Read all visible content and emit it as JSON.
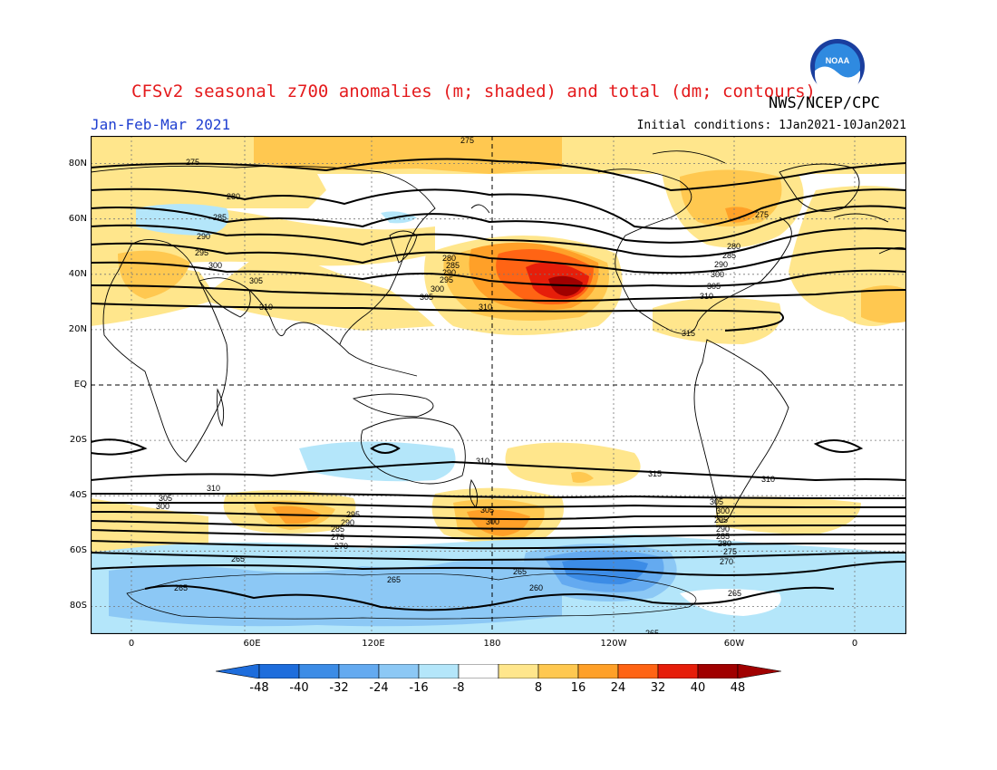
{
  "title": "CFSv2 seasonal z700 anomalies (m; shaded) and total (dm; contours)",
  "organization": "NWS/NCEP/CPC",
  "logo_text": "NOAA",
  "period": "Jan-Feb-Mar 2021",
  "initial_conditions": "Initial conditions: 1Jan2021-10Jan2021",
  "lat_labels": [
    "80N",
    "60N",
    "40N",
    "20N",
    "EQ",
    "20S",
    "40S",
    "60S",
    "80S"
  ],
  "lon_labels": [
    "0",
    "60E",
    "120E",
    "180",
    "120W",
    "60W",
    "0"
  ],
  "colorbar": {
    "ticks": [
      "-48",
      "-40",
      "-32",
      "-24",
      "-16",
      "-8",
      "8",
      "16",
      "24",
      "32",
      "40",
      "48"
    ],
    "colors": [
      "#1e6ddc",
      "#3c8ce6",
      "#64aaf0",
      "#8cc8f5",
      "#b4e6fa",
      "#ffffff",
      "#ffe68c",
      "#ffc850",
      "#ffa028",
      "#ff6414",
      "#e61e0a",
      "#a00000"
    ]
  },
  "contour_labels": {
    "nh": [
      "275",
      "280",
      "285",
      "290",
      "295",
      "300",
      "305",
      "310",
      "315"
    ],
    "sh": [
      "310",
      "305",
      "300",
      "295",
      "290",
      "285",
      "280",
      "275",
      "270",
      "265",
      "260",
      "315"
    ]
  },
  "top_edge_label": "275",
  "bottom_edge_label": "265"
}
